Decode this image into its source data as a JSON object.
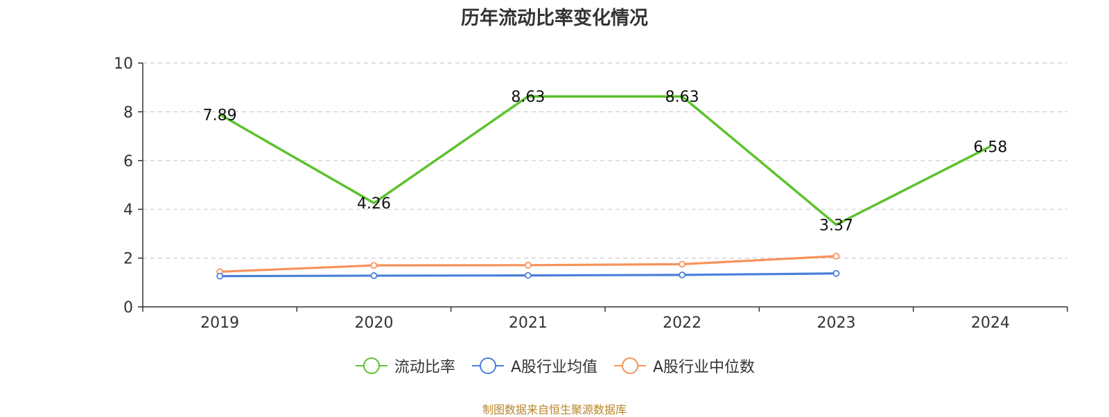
{
  "chart_data": {
    "type": "line",
    "title": "历年流动比率变化情况",
    "categories": [
      "2019",
      "2020",
      "2021",
      "2022",
      "2023",
      "2024"
    ],
    "ylim": [
      0,
      10
    ],
    "yticks": [
      0,
      2,
      4,
      6,
      8,
      10
    ],
    "grid": true,
    "legend_position": "bottom",
    "series": [
      {
        "name": "流动比率",
        "color": "#5cc22c",
        "values": [
          7.89,
          4.26,
          8.63,
          8.63,
          3.37,
          6.58
        ],
        "labels": [
          "7.89",
          "4.26",
          "8.63",
          "8.63",
          "3.37",
          "6.58"
        ]
      },
      {
        "name": "A股行业均值",
        "color": "#4a7fd9",
        "values": [
          1.26,
          1.28,
          1.29,
          1.31,
          1.37,
          null
        ]
      },
      {
        "name": "A股行业中位数",
        "color": "#f79259",
        "values": [
          1.44,
          1.7,
          1.71,
          1.75,
          2.08,
          null
        ]
      }
    ]
  },
  "footer": {
    "source": "制图数据来自恒生聚源数据库"
  }
}
